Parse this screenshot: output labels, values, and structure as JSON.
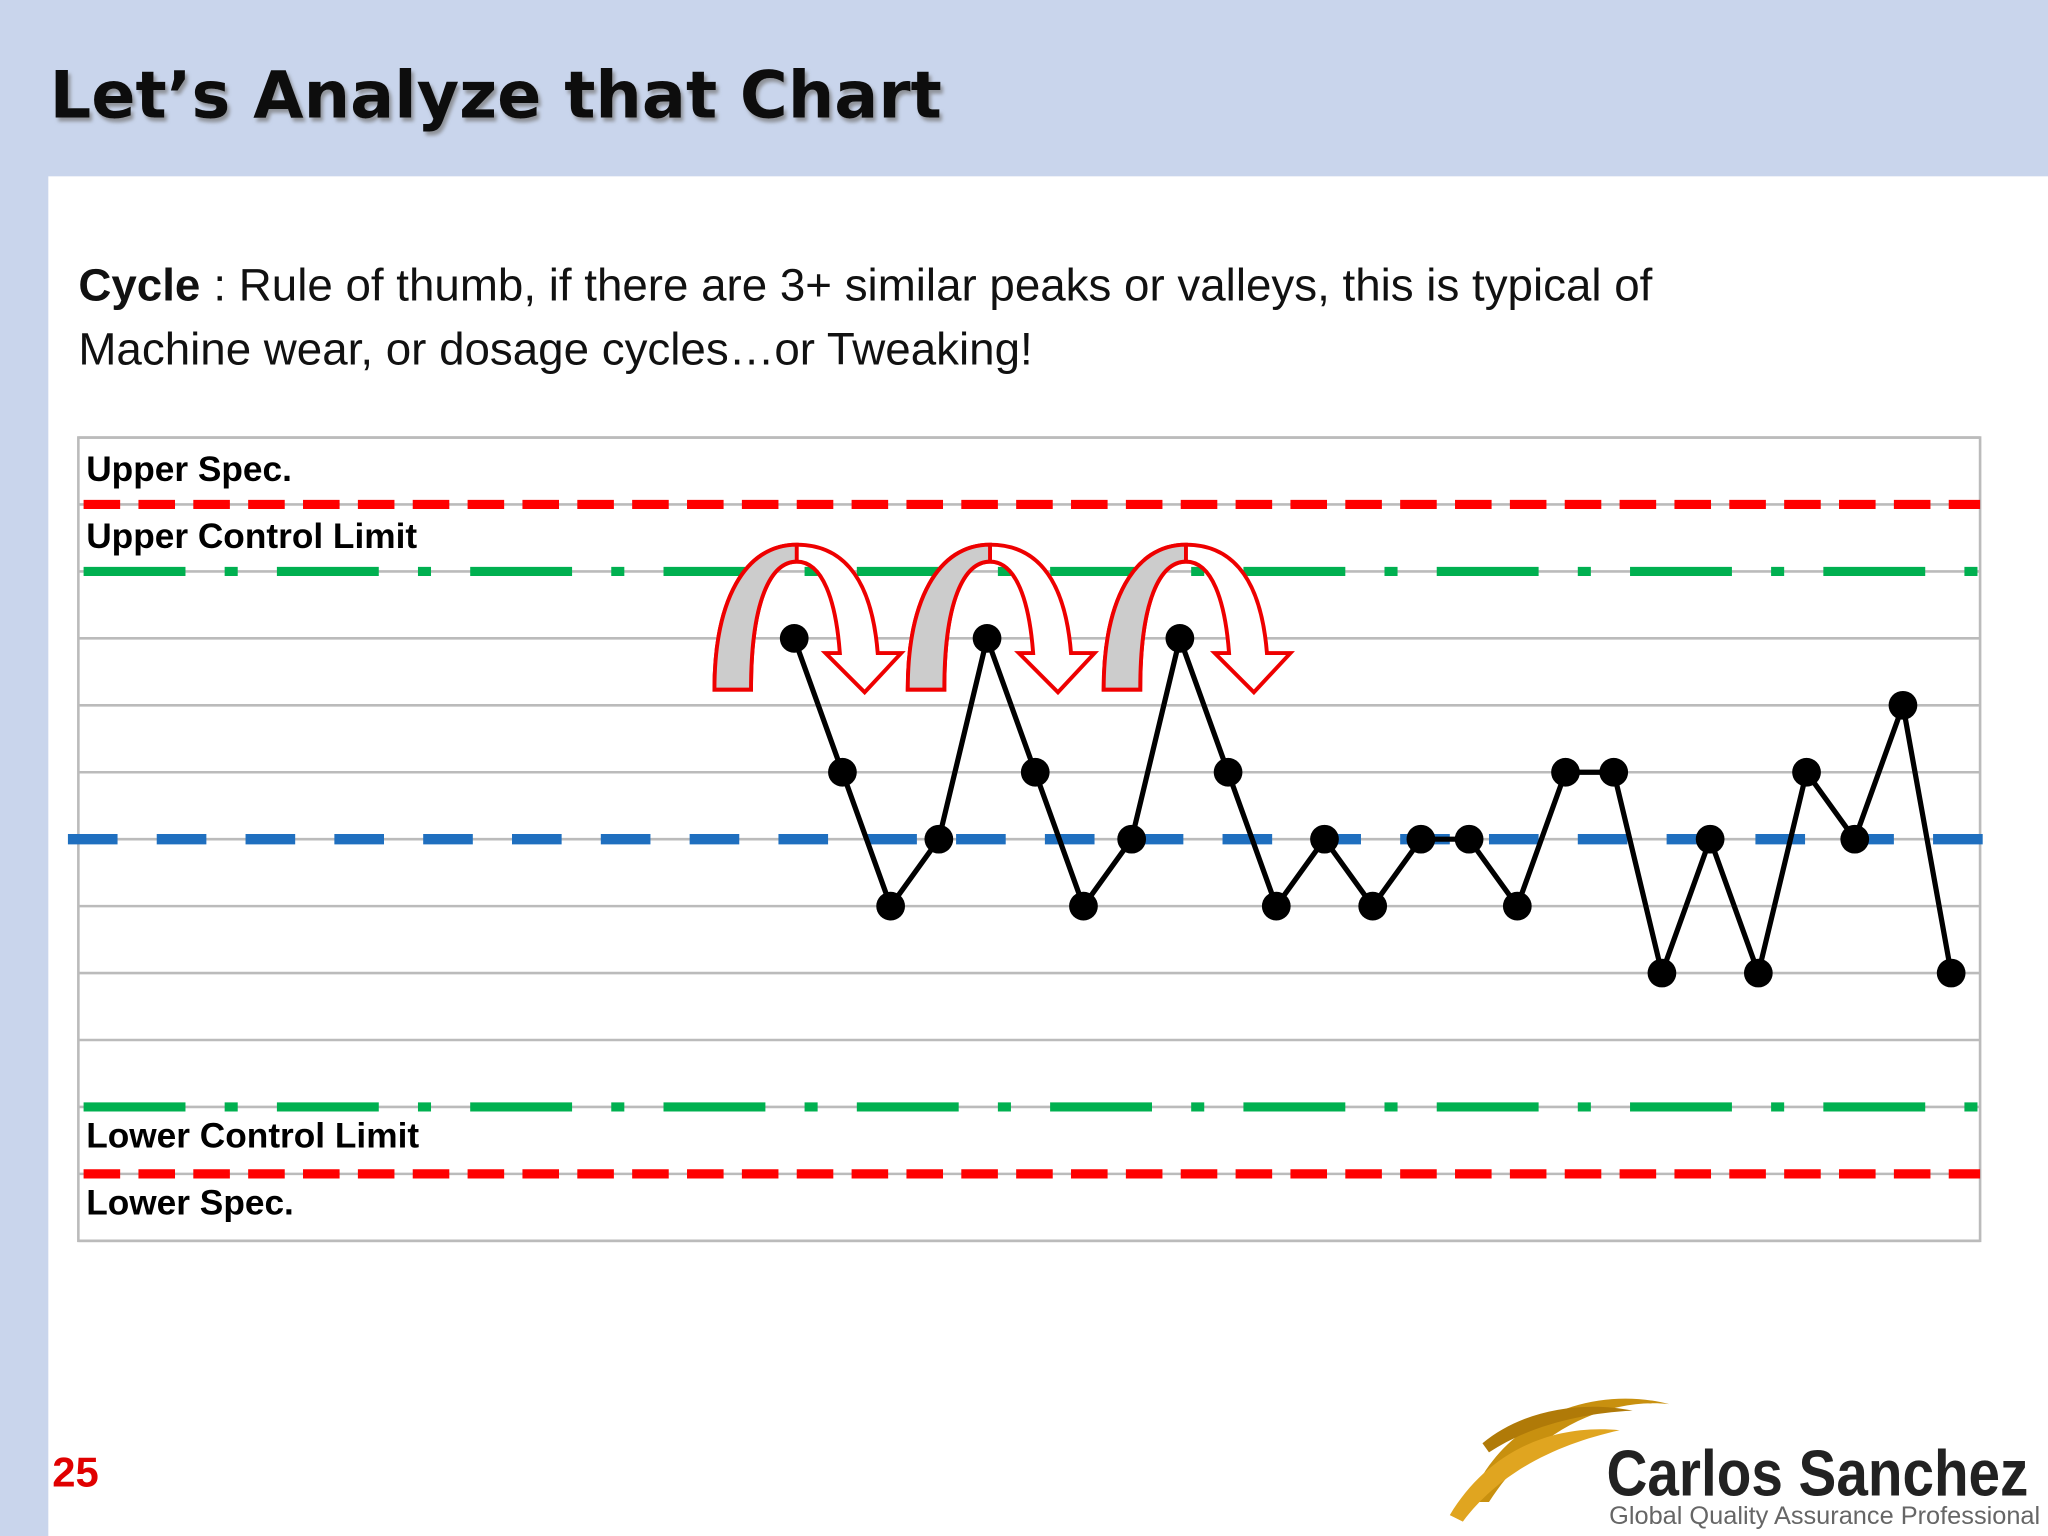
{
  "title": "Let’s Analyze that Chart",
  "description": {
    "term": "Cycle",
    "lines": [
      ": Rule of thumb, if there are 3+ similar peaks or valleys, this is typical of",
      "Machine wear, or dosage cycles…or Tweaking!"
    ]
  },
  "chart_data": {
    "type": "line",
    "x": [
      1,
      2,
      3,
      4,
      5,
      6,
      7,
      8,
      9,
      10,
      11,
      12,
      13,
      14,
      15,
      16,
      17,
      18,
      19,
      20,
      21,
      22,
      23,
      24,
      25
    ],
    "values": [
      3,
      1,
      -1,
      0,
      3,
      1,
      -1,
      0,
      3,
      1,
      -1,
      0,
      -1,
      0,
      0,
      -1,
      1,
      1,
      -2,
      0,
      -2,
      1,
      0,
      2,
      -2
    ],
    "color": "#000000",
    "xlim": [
      -13.85,
      25.6
    ],
    "ylim": [
      -6,
      6
    ],
    "yticks": [
      -6,
      -5,
      -4,
      -3,
      -2,
      -1,
      0,
      1,
      2,
      3,
      4,
      5,
      6
    ],
    "grid": true,
    "reference_lines": [
      {
        "label": "Upper Spec.",
        "value": 5,
        "color": "#ff0000",
        "style": "dashed"
      },
      {
        "label": "Upper Control Limit",
        "value": 4,
        "color": "#00b050",
        "style": "dashdot"
      },
      {
        "value": 0,
        "color": "#1f6fbf",
        "style": "dashed"
      },
      {
        "label": "Lower Control Limit",
        "value": -4,
        "color": "#00b050",
        "style": "dashdot"
      },
      {
        "label": "Lower Spec.",
        "value": -5,
        "color": "#ff0000",
        "style": "dashed"
      }
    ]
  },
  "page_number": "25",
  "logo": {
    "name": "Carlos Sanchez",
    "tagline": "Global Quality Assurance Professional"
  }
}
